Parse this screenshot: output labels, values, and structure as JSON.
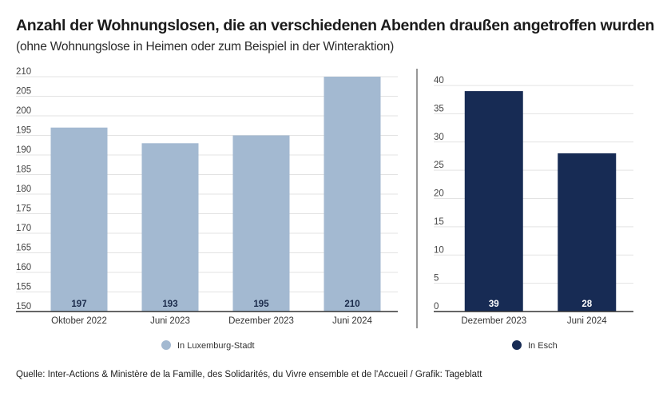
{
  "title": "Anzahl der Wohnungslosen, die an verschiedenen Abenden draußen angetroffen wurden",
  "subtitle": "(ohne Wohnungslose in Heimen oder zum Beispiel in der Winteraktion)",
  "source": "Quelle: Inter-Actions & Ministère de la Famille, des Solidarités, du Vivre ensemble et de l'Accueil / Grafik: Tageblatt",
  "chart_data": [
    {
      "type": "bar",
      "title": "",
      "xlabel": "",
      "ylabel": "",
      "categories": [
        "Oktober 2022",
        "Juni 2023",
        "Dezember 2023",
        "Juni 2024"
      ],
      "series": [
        {
          "name": "In Luxemburg-Stadt",
          "values": [
            197,
            193,
            195,
            210
          ],
          "color": "#a3b9d1"
        }
      ],
      "ylim": [
        150,
        210
      ],
      "yticks": [
        150,
        155,
        160,
        165,
        170,
        175,
        180,
        185,
        190,
        195,
        200,
        205,
        210
      ],
      "grid": true,
      "legend": "bottom-center",
      "label_color": "#1a2a4a"
    },
    {
      "type": "bar",
      "title": "",
      "xlabel": "",
      "ylabel": "",
      "categories": [
        "Dezember 2023",
        "Juni 2024"
      ],
      "series": [
        {
          "name": "In Esch",
          "values": [
            39,
            28
          ],
          "color": "#172b54"
        }
      ],
      "ylim": [
        0,
        40
      ],
      "yticks": [
        0,
        5,
        10,
        15,
        20,
        25,
        30,
        35,
        40
      ],
      "grid": true,
      "legend": "bottom-center",
      "label_color": "#ffffff"
    }
  ]
}
